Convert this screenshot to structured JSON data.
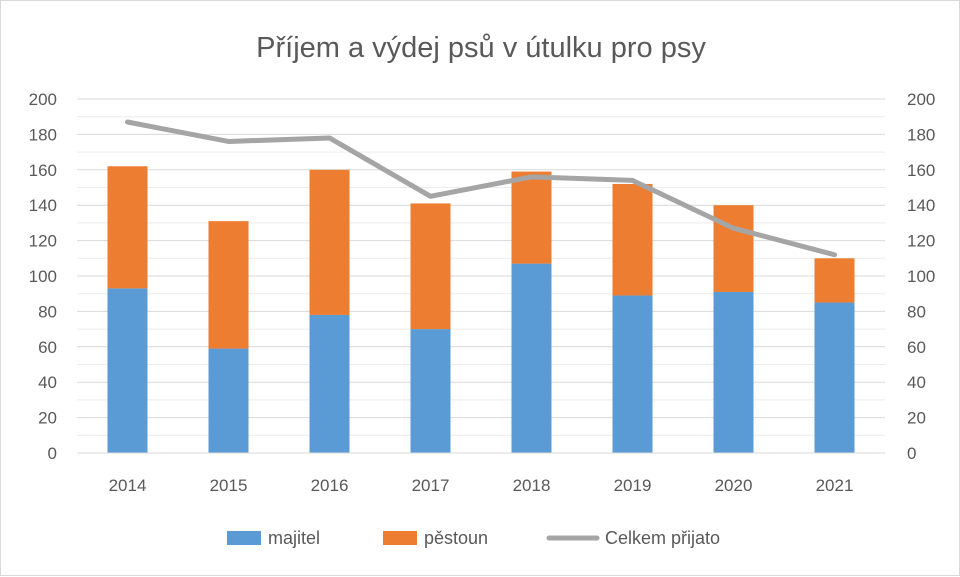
{
  "chart_data": {
    "type": "bar",
    "stacked": true,
    "title": "Příjem a výdej psů v útulku pro psy",
    "categories": [
      "2014",
      "2015",
      "2016",
      "2017",
      "2018",
      "2019",
      "2020",
      "2021"
    ],
    "series": [
      {
        "name": "majitel",
        "kind": "bar",
        "color": "#5b9bd5",
        "axis": "left",
        "values": [
          93,
          59,
          78,
          70,
          107,
          89,
          91,
          85
        ]
      },
      {
        "name": "pěstoun",
        "kind": "bar",
        "color": "#ed7d31",
        "axis": "left",
        "values": [
          69,
          72,
          82,
          71,
          52,
          63,
          49,
          25
        ]
      },
      {
        "name": "Celkem přijato",
        "kind": "line",
        "color": "#a5a5a5",
        "axis": "right",
        "values": [
          187,
          176,
          178,
          145,
          156,
          154,
          127,
          112
        ]
      }
    ],
    "ylim": [
      0,
      200
    ],
    "y2lim": [
      0,
      200
    ],
    "yticks": [
      "0",
      "20",
      "40",
      "60",
      "80",
      "100",
      "120",
      "140",
      "160",
      "180",
      "200"
    ],
    "y2ticks": [
      "0",
      "20",
      "40",
      "60",
      "80",
      "100",
      "120",
      "140",
      "160",
      "180",
      "200"
    ],
    "grid": true,
    "legend_position": "bottom"
  }
}
